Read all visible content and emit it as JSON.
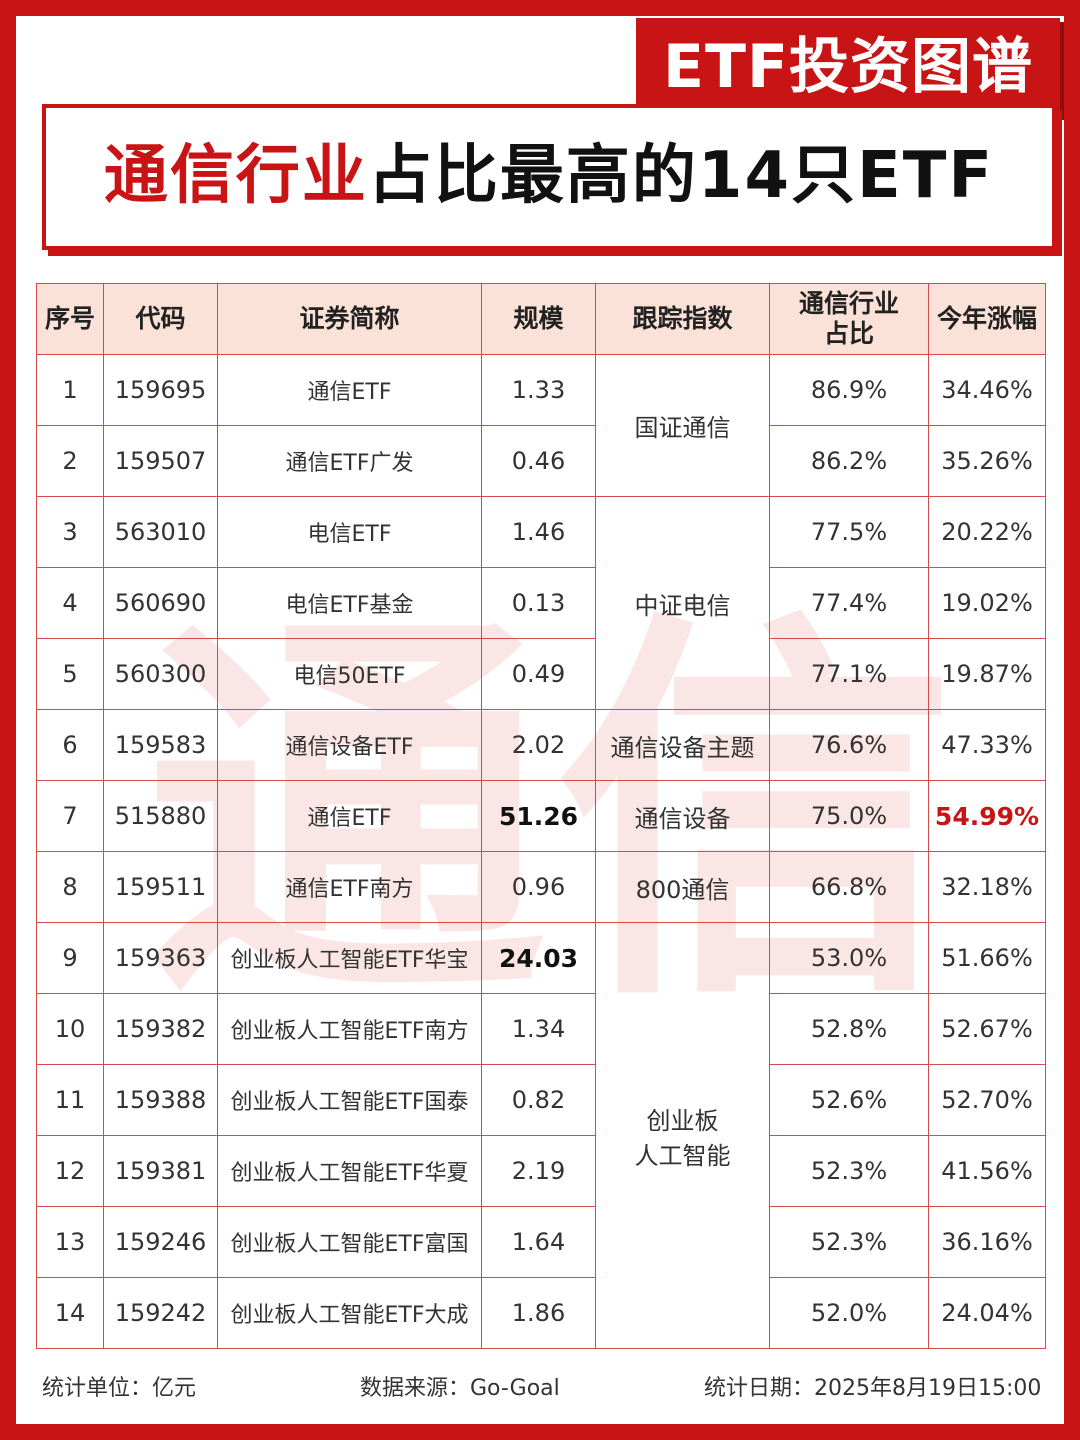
{
  "badge": "ETF投资图谱",
  "title": {
    "highlight": "通信行业",
    "rest": "占比最高的14只ETF"
  },
  "watermark": "通信",
  "table": {
    "headers": {
      "index": "序号",
      "code": "代码",
      "name": "证券简称",
      "scale": "规模",
      "tracking_index": "跟踪指数",
      "weight_line1": "通信行业",
      "weight_line2": "占比",
      "ytd": "今年涨幅"
    },
    "rows": [
      {
        "index": "1",
        "code": "159695",
        "name": "通信ETF",
        "scale": "1.33",
        "weight": "86.9%",
        "ytd": "34.46%"
      },
      {
        "index": "2",
        "code": "159507",
        "name": "通信ETF广发",
        "scale": "0.46",
        "weight": "86.2%",
        "ytd": "35.26%"
      },
      {
        "index": "3",
        "code": "563010",
        "name": "电信ETF",
        "scale": "1.46",
        "weight": "77.5%",
        "ytd": "20.22%"
      },
      {
        "index": "4",
        "code": "560690",
        "name": "电信ETF基金",
        "scale": "0.13",
        "weight": "77.4%",
        "ytd": "19.02%"
      },
      {
        "index": "5",
        "code": "560300",
        "name": "电信50ETF",
        "scale": "0.49",
        "weight": "77.1%",
        "ytd": "19.87%"
      },
      {
        "index": "6",
        "code": "159583",
        "name": "通信设备ETF",
        "scale": "2.02",
        "weight": "76.6%",
        "ytd": "47.33%"
      },
      {
        "index": "7",
        "code": "515880",
        "name": "通信ETF",
        "scale": "51.26",
        "weight": "75.0%",
        "ytd": "54.99%"
      },
      {
        "index": "8",
        "code": "159511",
        "name": "通信ETF南方",
        "scale": "0.96",
        "weight": "66.8%",
        "ytd": "32.18%"
      },
      {
        "index": "9",
        "code": "159363",
        "name": "创业板人工智能ETF华宝",
        "scale": "24.03",
        "weight": "53.0%",
        "ytd": "51.66%"
      },
      {
        "index": "10",
        "code": "159382",
        "name": "创业板人工智能ETF南方",
        "scale": "1.34",
        "weight": "52.8%",
        "ytd": "52.67%"
      },
      {
        "index": "11",
        "code": "159388",
        "name": "创业板人工智能ETF国泰",
        "scale": "0.82",
        "weight": "52.6%",
        "ytd": "52.70%"
      },
      {
        "index": "12",
        "code": "159381",
        "name": "创业板人工智能ETF华夏",
        "scale": "2.19",
        "weight": "52.3%",
        "ytd": "41.56%"
      },
      {
        "index": "13",
        "code": "159246",
        "name": "创业板人工智能ETF富国",
        "scale": "1.64",
        "weight": "52.3%",
        "ytd": "36.16%"
      },
      {
        "index": "14",
        "code": "159242",
        "name": "创业板人工智能ETF大成",
        "scale": "1.86",
        "weight": "52.0%",
        "ytd": "24.04%"
      }
    ],
    "index_groups": {
      "g1": "国证通信",
      "g2": "中证电信",
      "g3": "通信设备主题",
      "g4": "通信设备",
      "g5": "800通信",
      "g6_line1": "创业板",
      "g6_line2": "人工智能"
    }
  },
  "footer": {
    "unit": "统计单位：亿元",
    "source": "数据来源：Go-Goal",
    "date": "统计日期：2025年8月19日15:00"
  },
  "colors": {
    "brand_red": "#c81414",
    "header_bg": "#fbe2d8",
    "grid_line": "#d64a4a"
  }
}
